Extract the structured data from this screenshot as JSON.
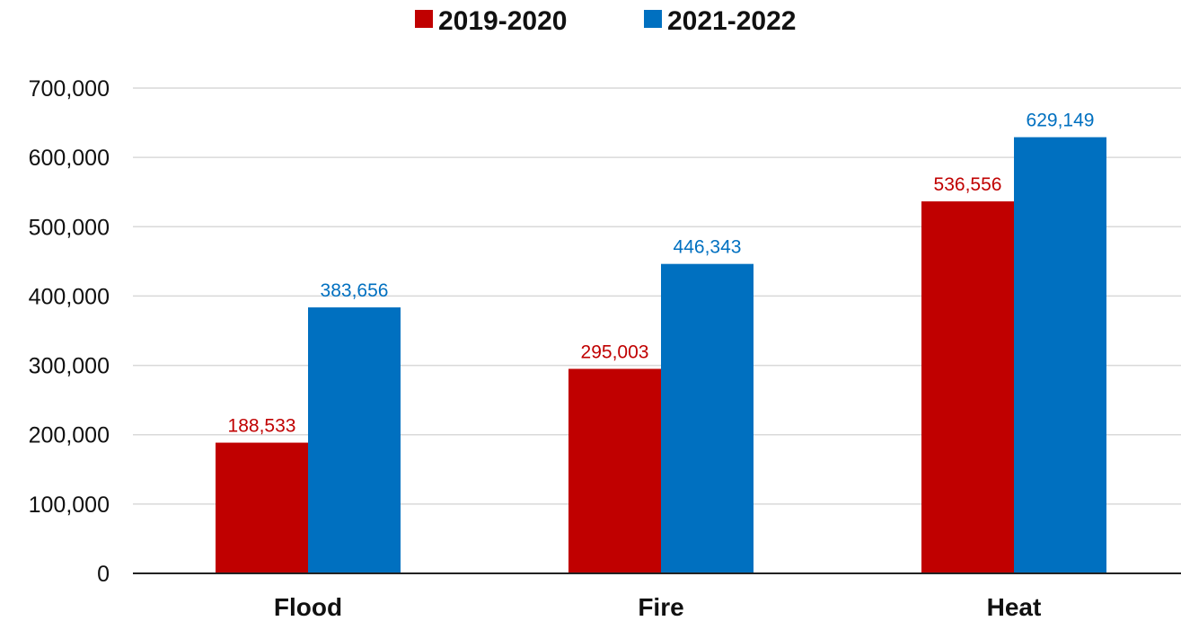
{
  "chart_data": {
    "type": "bar",
    "categories": [
      "Flood",
      "Fire",
      "Heat"
    ],
    "series": [
      {
        "name": "2019-2020",
        "color": "#c00000",
        "values": [
          188533,
          295003,
          536556
        ],
        "labels": [
          "188,533",
          "295,003",
          "536,556"
        ]
      },
      {
        "name": "2021-2022",
        "color": "#0070c0",
        "values": [
          383656,
          446343,
          629149
        ],
        "labels": [
          "383,656",
          "446,343",
          "629,149"
        ]
      }
    ],
    "yticks": [
      0,
      100000,
      200000,
      300000,
      400000,
      500000,
      600000,
      700000
    ],
    "ytick_labels": [
      "0",
      "100,000",
      "200,000",
      "300,000",
      "400,000",
      "500,000",
      "600,000",
      "700,000"
    ],
    "ylim": [
      0,
      700000
    ],
    "grid": true,
    "legend_position": "top-center",
    "title": "",
    "xlabel": "",
    "ylabel": ""
  }
}
